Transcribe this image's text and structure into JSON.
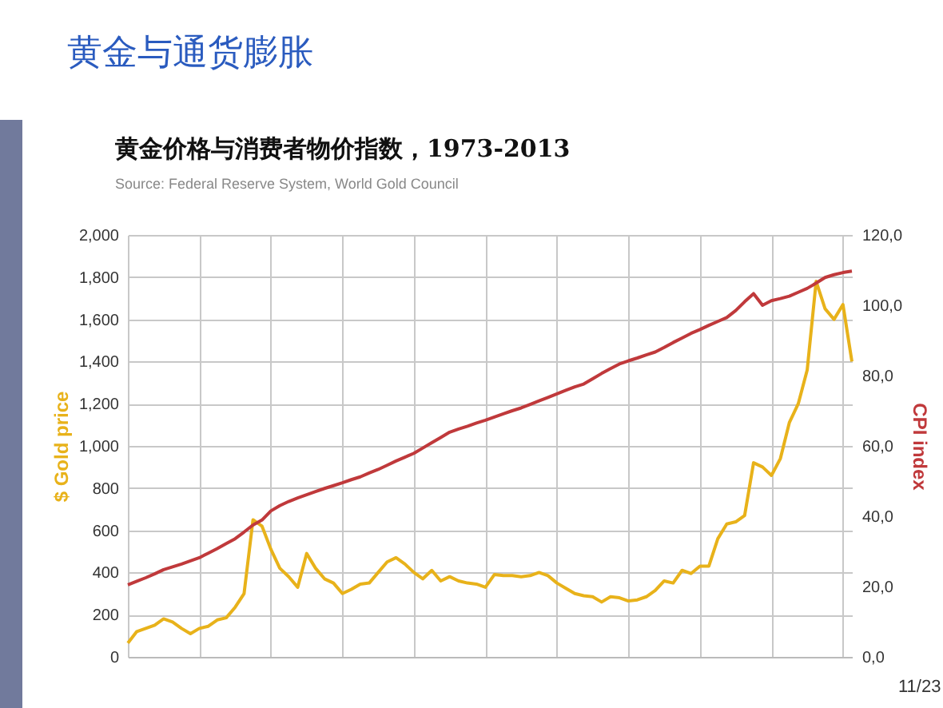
{
  "chart_data": {
    "type": "line",
    "title": "黄金与通货膨胀",
    "subtitle": "黄金价格与消费者物价指数，1973-2013",
    "annotations": [
      "Source: Federal Reserve System, World Gold Council",
      "11/23"
    ],
    "ylabel": "$ Gold price",
    "y2label": "CPI index",
    "categories": [
      null,
      null,
      null,
      null,
      null,
      null,
      null,
      null,
      null,
      null,
      null,
      null,
      null,
      null,
      null,
      null,
      null,
      null,
      null,
      null,
      null,
      null,
      null,
      null,
      null,
      null,
      null,
      null,
      null,
      null,
      null,
      null,
      null,
      null,
      null,
      null,
      null,
      null,
      null,
      null,
      null,
      null,
      null,
      null,
      null,
      null,
      null,
      null,
      null,
      null,
      null,
      null,
      null,
      null,
      null,
      null,
      null,
      null,
      null,
      null,
      null,
      null,
      null,
      null,
      null,
      null,
      null,
      null,
      null,
      null,
      null,
      null,
      null,
      null,
      null,
      null,
      null,
      null,
      null,
      null,
      null,
      null
    ],
    "series": [
      {
        "color": "#e8b21a",
        "values": [
          65,
          120,
          135,
          150,
          180,
          165,
          135,
          110,
          135,
          145,
          175,
          185,
          235,
          300,
          650,
          620,
          510,
          420,
          380,
          330,
          490,
          420,
          370,
          350,
          300,
          320,
          345,
          350,
          400,
          450,
          470,
          440,
          400,
          370,
          410,
          360,
          380,
          360,
          350,
          345,
          330,
          390,
          385,
          385,
          380,
          385,
          400,
          385,
          350,
          325,
          300,
          290,
          285,
          260,
          285,
          280,
          265,
          270,
          285,
          315,
          360,
          350,
          410,
          395,
          430,
          430,
          560,
          630,
          640,
          670,
          920,
          900,
          860,
          940,
          1110,
          1200,
          1360,
          1780,
          1650,
          1600,
          1670,
          1400
        ]
      },
      {
        "axis": "y2",
        "color": "#c0393b",
        "values": [
          20.5,
          21.5,
          22.5,
          23.6,
          24.8,
          25.6,
          26.4,
          27.3,
          28.2,
          29.5,
          30.8,
          32.2,
          33.6,
          35.5,
          37.5,
          38.9,
          41.5,
          43.0,
          44.2,
          45.2,
          46.1,
          47.0,
          47.9,
          48.7,
          49.5,
          50.4,
          51.2,
          52.3,
          53.3,
          54.5,
          55.7,
          56.8,
          57.9,
          59.4,
          60.9,
          62.4,
          63.9,
          64.8,
          65.6,
          66.5,
          67.3,
          68.2,
          69.1,
          70.0,
          70.8,
          71.8,
          72.8,
          73.8,
          74.8,
          75.8,
          76.8,
          77.6,
          79.1,
          80.6,
          82.0,
          83.3,
          84.2,
          85.0,
          85.9,
          86.7,
          88.0,
          89.4,
          90.7,
          92.0,
          93.1,
          94.3,
          95.4,
          96.5,
          98.5,
          101.0,
          103.3,
          100.0,
          101.3,
          101.9,
          102.6,
          103.7,
          104.8,
          106.3,
          107.9,
          108.7,
          109.3,
          109.7
        ]
      }
    ],
    "ylim": [
      0,
      2000
    ],
    "yticks": [
      0,
      200,
      400,
      600,
      800,
      {
        "value": 1000,
        "label": "1,000"
      },
      {
        "value": 1200,
        "label": "1,200"
      },
      {
        "value": 1400,
        "label": "1,400"
      },
      {
        "value": 1600,
        "label": "1,600"
      },
      {
        "value": 1800,
        "label": "1,800"
      },
      {
        "value": 2000,
        "label": "2,000"
      }
    ],
    "y2lim": [
      0,
      120
    ],
    "y2ticks": [
      {
        "value": 0,
        "label": "0,0"
      },
      {
        "value": 20,
        "label": "20,0"
      },
      {
        "value": 40,
        "label": "40,0"
      },
      {
        "value": 60,
        "label": "60,0"
      },
      {
        "value": 80,
        "label": "80,0"
      },
      {
        "value": 100,
        "label": "100,0"
      },
      {
        "value": 120,
        "label": "120,0"
      }
    ],
    "grid": true,
    "tick_labels": "y",
    "marker": "none",
    "line_style": "solid"
  }
}
